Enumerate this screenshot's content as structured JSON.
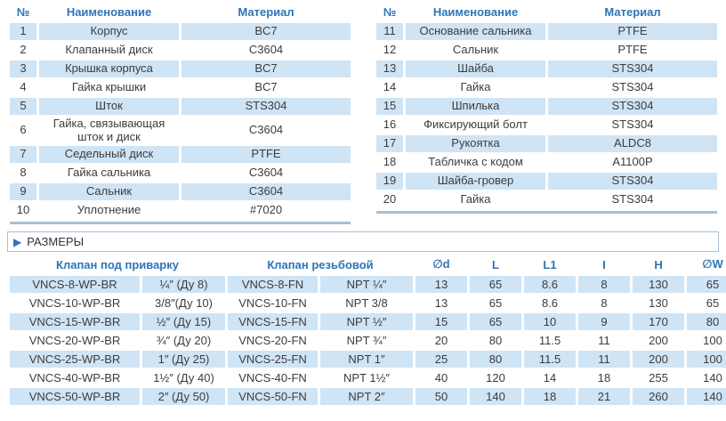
{
  "colors": {
    "row_stripe": "#cfe4f5",
    "header_text_blue": "#2e74b8",
    "body_text": "#3c3c3c",
    "bar_and_border": "#a9bdd6"
  },
  "parts": {
    "headers": {
      "num": "№",
      "name": "Наименование",
      "material": "Материал"
    },
    "left": [
      {
        "num": "1",
        "name": "Корпус",
        "material": "BC7"
      },
      {
        "num": "2",
        "name": "Клапанный диск",
        "material": "C3604"
      },
      {
        "num": "3",
        "name": "Крышка корпуса",
        "material": "BC7"
      },
      {
        "num": "4",
        "name": "Гайка крышки",
        "material": "BC7"
      },
      {
        "num": "5",
        "name": "Шток",
        "material": "STS304"
      },
      {
        "num": "6",
        "name": "Гайка, связывающая шток и диск",
        "material": "C3604"
      },
      {
        "num": "7",
        "name": "Седельный диск",
        "material": "PTFE"
      },
      {
        "num": "8",
        "name": "Гайка сальника",
        "material": "C3604"
      },
      {
        "num": "9",
        "name": "Сальник",
        "material": "C3604"
      },
      {
        "num": "10",
        "name": "Уплотнение",
        "material": "#7020"
      }
    ],
    "right": [
      {
        "num": "11",
        "name": "Основание сальника",
        "material": "PTFE"
      },
      {
        "num": "12",
        "name": "Сальник",
        "material": "PTFE"
      },
      {
        "num": "13",
        "name": "Шайба",
        "material": "STS304"
      },
      {
        "num": "14",
        "name": "Гайка",
        "material": "STS304"
      },
      {
        "num": "15",
        "name": "Шпилька",
        "material": "STS304"
      },
      {
        "num": "16",
        "name": "Фиксирующий болт",
        "material": "STS304"
      },
      {
        "num": "17",
        "name": "Рукоятка",
        "material": "ALDC8"
      },
      {
        "num": "18",
        "name": "Табличка с кодом",
        "material": "A1100P"
      },
      {
        "num": "19",
        "name": "Шайба-гровер",
        "material": "STS304"
      },
      {
        "num": "20",
        "name": "Гайка",
        "material": "STS304"
      }
    ]
  },
  "sizes": {
    "title": "РАЗМЕРЫ",
    "triangle_icon": "▶",
    "group_weld": "Клапан под приварку",
    "group_threaded": "Клапан резьбовой",
    "col_headers": [
      "∅d",
      "L",
      "L1",
      "I",
      "H",
      "∅W"
    ],
    "rows": [
      {
        "wp_model": "VNCS-8-WP-BR",
        "wp_size": "¼″ (Ду 8)",
        "fn_model": "VNCS-8-FN",
        "fn_size": "NPT ¼″",
        "d": "13",
        "L": "65",
        "L1": "8.6",
        "I": "8",
        "H": "130",
        "W": "65"
      },
      {
        "wp_model": "VNCS-10-WP-BR",
        "wp_size": "3/8″(Ду 10)",
        "fn_model": "VNCS-10-FN",
        "fn_size": "NPT 3/8",
        "d": "13",
        "L": "65",
        "L1": "8.6",
        "I": "8",
        "H": "130",
        "W": "65"
      },
      {
        "wp_model": "VNCS-15-WP-BR",
        "wp_size": "½″ (Ду 15)",
        "fn_model": "VNCS-15-FN",
        "fn_size": "NPT ½″",
        "d": "15",
        "L": "65",
        "L1": "10",
        "I": "9",
        "H": "170",
        "W": "80"
      },
      {
        "wp_model": "VNCS-20-WP-BR",
        "wp_size": "¾″ (Ду 20)",
        "fn_model": "VNCS-20-FN",
        "fn_size": "NPT ¾″",
        "d": "20",
        "L": "80",
        "L1": "11.5",
        "I": "11",
        "H": "200",
        "W": "100"
      },
      {
        "wp_model": "VNCS-25-WP-BR",
        "wp_size": "1″ (Ду 25)",
        "fn_model": "VNCS-25-FN",
        "fn_size": "NPT 1″",
        "d": "25",
        "L": "80",
        "L1": "11.5",
        "I": "11",
        "H": "200",
        "W": "100"
      },
      {
        "wp_model": "VNCS-40-WP-BR",
        "wp_size": "1½″ (Ду 40)",
        "fn_model": "VNCS-40-FN",
        "fn_size": "NPT 1½″",
        "d": "40",
        "L": "120",
        "L1": "14",
        "I": "18",
        "H": "255",
        "W": "140"
      },
      {
        "wp_model": "VNCS-50-WP-BR",
        "wp_size": "2″ (Ду 50)",
        "fn_model": "VNCS-50-FN",
        "fn_size": "NPT 2″",
        "d": "50",
        "L": "140",
        "L1": "18",
        "I": "21",
        "H": "260",
        "W": "140"
      }
    ]
  }
}
